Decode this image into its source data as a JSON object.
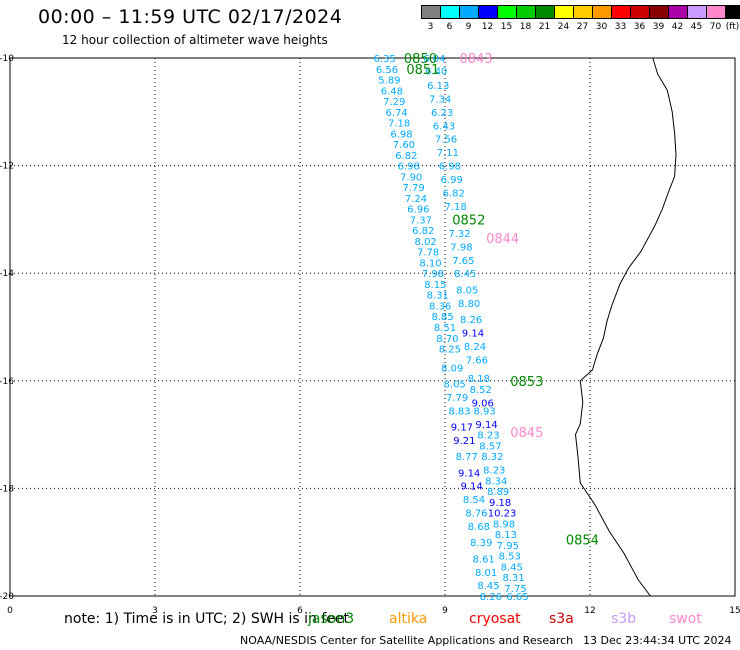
{
  "title": "00:00 – 11:59 UTC 02/17/2024",
  "subtitle": "12 hour collection of altimeter wave heights",
  "legend": {
    "unit": "(ft)",
    "bins": [
      {
        "label": "3",
        "color": "#808080"
      },
      {
        "label": "6",
        "color": "#00ffff"
      },
      {
        "label": "9",
        "color": "#00aaff"
      },
      {
        "label": "12",
        "color": "#0000ff"
      },
      {
        "label": "15",
        "color": "#00ff00"
      },
      {
        "label": "18",
        "color": "#00cc00"
      },
      {
        "label": "21",
        "color": "#008800"
      },
      {
        "label": "24",
        "color": "#ffff00"
      },
      {
        "label": "27",
        "color": "#ffcc00"
      },
      {
        "label": "30",
        "color": "#ff9900"
      },
      {
        "label": "33",
        "color": "#ff0000"
      },
      {
        "label": "36",
        "color": "#cc0000"
      },
      {
        "label": "39",
        "color": "#880000"
      },
      {
        "label": "42",
        "color": "#aa00aa"
      },
      {
        "label": "45",
        "color": "#cc99ff"
      },
      {
        "label": "70",
        "color": "#ff88cc"
      },
      {
        "label": "",
        "color": "#000000"
      }
    ]
  },
  "map": {
    "x_ticks": [
      "0",
      "3",
      "6",
      "9",
      "12",
      "15"
    ],
    "y_ticks": [
      "-10",
      "-12",
      "-14",
      "-16",
      "-18",
      "-20"
    ],
    "lon_range": [
      0,
      15
    ],
    "lat_range": [
      -20,
      -10
    ],
    "coastline": [
      [
        13.3,
        -10.0
      ],
      [
        13.4,
        -10.3
      ],
      [
        13.6,
        -10.6
      ],
      [
        13.7,
        -11.0
      ],
      [
        13.75,
        -11.4
      ],
      [
        13.78,
        -11.8
      ],
      [
        13.75,
        -12.2
      ],
      [
        13.62,
        -12.5
      ],
      [
        13.5,
        -12.8
      ],
      [
        13.35,
        -13.1
      ],
      [
        13.05,
        -13.6
      ],
      [
        12.8,
        -13.9
      ],
      [
        12.62,
        -14.2
      ],
      [
        12.45,
        -14.6
      ],
      [
        12.35,
        -14.9
      ],
      [
        12.28,
        -15.2
      ],
      [
        12.15,
        -15.5
      ],
      [
        12.05,
        -15.8
      ],
      [
        11.8,
        -16.0
      ],
      [
        11.85,
        -16.4
      ],
      [
        11.8,
        -16.8
      ],
      [
        11.7,
        -17.0
      ],
      [
        11.75,
        -17.4
      ],
      [
        11.8,
        -17.9
      ],
      [
        12.1,
        -18.3
      ],
      [
        12.4,
        -18.8
      ],
      [
        12.7,
        -19.2
      ],
      [
        13.0,
        -19.7
      ],
      [
        13.25,
        -20.0
      ]
    ],
    "pass_labels": [
      {
        "text": "0850",
        "lon": 8.15,
        "lat": -10.0,
        "color": "#008800"
      },
      {
        "text": "0851",
        "lon": 8.2,
        "lat": -10.2,
        "color": "#008800"
      },
      {
        "text": "0843",
        "lon": 9.3,
        "lat": -10.0,
        "color": "#ff88cc"
      },
      {
        "text": "0852",
        "lon": 9.15,
        "lat": -13.0,
        "color": "#008800"
      },
      {
        "text": "0844",
        "lon": 9.85,
        "lat": -13.35,
        "color": "#ff88cc"
      },
      {
        "text": "0853",
        "lon": 10.35,
        "lat": -16.0,
        "color": "#008800"
      },
      {
        "text": "0845",
        "lon": 10.35,
        "lat": -16.95,
        "color": "#ff88cc"
      },
      {
        "text": "0854",
        "lon": 11.5,
        "lat": -18.95,
        "color": "#008800"
      }
    ],
    "swh_points": [
      {
        "v": "6.35",
        "lon": 7.75,
        "lat": -10.0,
        "c": "#00aaff"
      },
      {
        "v": "6.04",
        "lon": 8.78,
        "lat": -10.0,
        "c": "#00aaff"
      },
      {
        "v": "6.56",
        "lon": 7.8,
        "lat": -10.2,
        "c": "#00aaff"
      },
      {
        "v": "6.40",
        "lon": 8.82,
        "lat": -10.23,
        "c": "#00aaff"
      },
      {
        "v": "5.89",
        "lon": 7.85,
        "lat": -10.4,
        "c": "#00aaff"
      },
      {
        "v": "6.13",
        "lon": 8.86,
        "lat": -10.5,
        "c": "#00aaff"
      },
      {
        "v": "6.48",
        "lon": 7.9,
        "lat": -10.6,
        "c": "#00aaff"
      },
      {
        "v": "7.34",
        "lon": 8.9,
        "lat": -10.75,
        "c": "#00aaff"
      },
      {
        "v": "7.29",
        "lon": 7.95,
        "lat": -10.8,
        "c": "#00aaff"
      },
      {
        "v": "6.74",
        "lon": 8.0,
        "lat": -11.0,
        "c": "#00aaff"
      },
      {
        "v": "6.23",
        "lon": 8.94,
        "lat": -11.0,
        "c": "#00aaff"
      },
      {
        "v": "7.18",
        "lon": 8.05,
        "lat": -11.2,
        "c": "#00aaff"
      },
      {
        "v": "6.43",
        "lon": 8.98,
        "lat": -11.25,
        "c": "#00aaff"
      },
      {
        "v": "6.98",
        "lon": 8.1,
        "lat": -11.4,
        "c": "#00aaff"
      },
      {
        "v": "7.56",
        "lon": 9.02,
        "lat": -11.5,
        "c": "#00aaff"
      },
      {
        "v": "7.60",
        "lon": 8.15,
        "lat": -11.6,
        "c": "#00aaff"
      },
      {
        "v": "7.11",
        "lon": 9.06,
        "lat": -11.75,
        "c": "#00aaff"
      },
      {
        "v": "6.82",
        "lon": 8.2,
        "lat": -11.8,
        "c": "#00aaff"
      },
      {
        "v": "6.98",
        "lon": 8.25,
        "lat": -12.0,
        "c": "#00aaff"
      },
      {
        "v": "6.98",
        "lon": 9.1,
        "lat": -12.0,
        "c": "#00aaff"
      },
      {
        "v": "7.90",
        "lon": 8.3,
        "lat": -12.2,
        "c": "#00aaff"
      },
      {
        "v": "6.99",
        "lon": 9.14,
        "lat": -12.25,
        "c": "#00aaff"
      },
      {
        "v": "7.79",
        "lon": 8.35,
        "lat": -12.4,
        "c": "#00aaff"
      },
      {
        "v": "6.82",
        "lon": 9.18,
        "lat": -12.5,
        "c": "#00aaff"
      },
      {
        "v": "7.24",
        "lon": 8.4,
        "lat": -12.6,
        "c": "#00aaff"
      },
      {
        "v": "7.18",
        "lon": 9.22,
        "lat": -12.75,
        "c": "#00aaff"
      },
      {
        "v": "6.96",
        "lon": 8.45,
        "lat": -12.8,
        "c": "#00aaff"
      },
      {
        "v": "7.37",
        "lon": 8.5,
        "lat": -13.0,
        "c": "#00aaff"
      },
      {
        "v": "6.82",
        "lon": 8.55,
        "lat": -13.2,
        "c": "#00aaff"
      },
      {
        "v": "7.32",
        "lon": 9.3,
        "lat": -13.25,
        "c": "#00aaff"
      },
      {
        "v": "8.02",
        "lon": 8.6,
        "lat": -13.4,
        "c": "#00aaff"
      },
      {
        "v": "7.98",
        "lon": 9.34,
        "lat": -13.5,
        "c": "#00aaff"
      },
      {
        "v": "7.78",
        "lon": 8.65,
        "lat": -13.6,
        "c": "#00aaff"
      },
      {
        "v": "7.65",
        "lon": 9.38,
        "lat": -13.75,
        "c": "#00aaff"
      },
      {
        "v": "8.10",
        "lon": 8.7,
        "lat": -13.8,
        "c": "#00aaff"
      },
      {
        "v": "7.98",
        "lon": 8.75,
        "lat": -14.0,
        "c": "#00aaff"
      },
      {
        "v": "8.45",
        "lon": 9.42,
        "lat": -14.0,
        "c": "#00aaff"
      },
      {
        "v": "8.15",
        "lon": 8.8,
        "lat": -14.2,
        "c": "#00aaff"
      },
      {
        "v": "8.05",
        "lon": 9.46,
        "lat": -14.3,
        "c": "#00aaff"
      },
      {
        "v": "8.31",
        "lon": 8.85,
        "lat": -14.4,
        "c": "#00aaff"
      },
      {
        "v": "8.36",
        "lon": 8.9,
        "lat": -14.6,
        "c": "#00aaff"
      },
      {
        "v": "8.80",
        "lon": 9.5,
        "lat": -14.55,
        "c": "#00aaff"
      },
      {
        "v": "8.85",
        "lon": 8.95,
        "lat": -14.8,
        "c": "#00aaff"
      },
      {
        "v": "8.26",
        "lon": 9.54,
        "lat": -14.85,
        "c": "#00aaff"
      },
      {
        "v": "8.51",
        "lon": 9.0,
        "lat": -15.0,
        "c": "#00aaff"
      },
      {
        "v": "9.14",
        "lon": 9.58,
        "lat": -15.1,
        "c": "#0000ff"
      },
      {
        "v": "8.70",
        "lon": 9.05,
        "lat": -15.2,
        "c": "#00aaff"
      },
      {
        "v": "8.24",
        "lon": 9.62,
        "lat": -15.35,
        "c": "#00aaff"
      },
      {
        "v": "8.25",
        "lon": 9.1,
        "lat": -15.4,
        "c": "#00aaff"
      },
      {
        "v": "7.66",
        "lon": 9.66,
        "lat": -15.6,
        "c": "#00aaff"
      },
      {
        "v": "8.09",
        "lon": 9.15,
        "lat": -15.75,
        "c": "#00aaff"
      },
      {
        "v": "8.18",
        "lon": 9.7,
        "lat": -15.95,
        "c": "#00aaff"
      },
      {
        "v": "8.05",
        "lon": 9.2,
        "lat": -16.05,
        "c": "#00aaff"
      },
      {
        "v": "8.52",
        "lon": 9.74,
        "lat": -16.15,
        "c": "#00aaff"
      },
      {
        "v": "7.79",
        "lon": 9.25,
        "lat": -16.3,
        "c": "#00aaff"
      },
      {
        "v": "9.06",
        "lon": 9.78,
        "lat": -16.4,
        "c": "#0000ff"
      },
      {
        "v": "8.83",
        "lon": 9.3,
        "lat": -16.55,
        "c": "#00aaff"
      },
      {
        "v": "8.93",
        "lon": 9.82,
        "lat": -16.55,
        "c": "#00aaff"
      },
      {
        "v": "9.17",
        "lon": 9.35,
        "lat": -16.85,
        "c": "#0000ff"
      },
      {
        "v": "9.14",
        "lon": 9.86,
        "lat": -16.8,
        "c": "#0000ff"
      },
      {
        "v": "8.23",
        "lon": 9.9,
        "lat": -17.0,
        "c": "#00aaff"
      },
      {
        "v": "9.21",
        "lon": 9.4,
        "lat": -17.1,
        "c": "#0000ff"
      },
      {
        "v": "8.57",
        "lon": 9.94,
        "lat": -17.2,
        "c": "#00aaff"
      },
      {
        "v": "8.77",
        "lon": 9.45,
        "lat": -17.4,
        "c": "#00aaff"
      },
      {
        "v": "8.32",
        "lon": 9.98,
        "lat": -17.4,
        "c": "#00aaff"
      },
      {
        "v": "9.14",
        "lon": 9.5,
        "lat": -17.7,
        "c": "#0000ff"
      },
      {
        "v": "8.23",
        "lon": 10.02,
        "lat": -17.65,
        "c": "#00aaff"
      },
      {
        "v": "8.34",
        "lon": 10.06,
        "lat": -17.85,
        "c": "#00aaff"
      },
      {
        "v": "9.14",
        "lon": 9.55,
        "lat": -17.95,
        "c": "#0000ff"
      },
      {
        "v": "8.89",
        "lon": 10.1,
        "lat": -18.05,
        "c": "#00aaff"
      },
      {
        "v": "8.54",
        "lon": 9.6,
        "lat": -18.2,
        "c": "#00aaff"
      },
      {
        "v": "9.18",
        "lon": 10.14,
        "lat": -18.25,
        "c": "#0000ff"
      },
      {
        "v": "8.76",
        "lon": 9.65,
        "lat": -18.45,
        "c": "#00aaff"
      },
      {
        "v": "10.23",
        "lon": 10.18,
        "lat": -18.45,
        "c": "#0000ff"
      },
      {
        "v": "8.98",
        "lon": 10.22,
        "lat": -18.65,
        "c": "#00aaff"
      },
      {
        "v": "8.68",
        "lon": 9.7,
        "lat": -18.7,
        "c": "#00aaff"
      },
      {
        "v": "8.13",
        "lon": 10.26,
        "lat": -18.85,
        "c": "#00aaff"
      },
      {
        "v": "8.39",
        "lon": 9.75,
        "lat": -19.0,
        "c": "#00aaff"
      },
      {
        "v": "7.95",
        "lon": 10.3,
        "lat": -19.05,
        "c": "#00aaff"
      },
      {
        "v": "8.53",
        "lon": 10.34,
        "lat": -19.25,
        "c": "#00aaff"
      },
      {
        "v": "8.61",
        "lon": 9.8,
        "lat": -19.3,
        "c": "#00aaff"
      },
      {
        "v": "8.45",
        "lon": 10.38,
        "lat": -19.45,
        "c": "#00aaff"
      },
      {
        "v": "8.01",
        "lon": 9.85,
        "lat": -19.55,
        "c": "#00aaff"
      },
      {
        "v": "8.31",
        "lon": 10.42,
        "lat": -19.65,
        "c": "#00aaff"
      },
      {
        "v": "8.45",
        "lon": 9.9,
        "lat": -19.8,
        "c": "#00aaff"
      },
      {
        "v": "7.75",
        "lon": 10.46,
        "lat": -19.85,
        "c": "#00aaff"
      },
      {
        "v": "8.26",
        "lon": 9.95,
        "lat": -20.0,
        "c": "#00aaff"
      },
      {
        "v": "6.65",
        "lon": 10.5,
        "lat": -20.0,
        "c": "#00aaff"
      }
    ]
  },
  "note": "note:  1) Time is in UTC;  2) SWH is in feet",
  "satellites": [
    {
      "name": "jason3",
      "color": "#008800"
    },
    {
      "name": "altika",
      "color": "#ff9900"
    },
    {
      "name": "cryosat",
      "color": "#ff0000"
    },
    {
      "name": "s3a",
      "color": "#cc0000"
    },
    {
      "name": "s3b",
      "color": "#cc99ff"
    },
    {
      "name": "swot",
      "color": "#ff88cc"
    }
  ],
  "credit": "NOAA/NESDIS Center for Satellite Applications and Research",
  "generated": "13 Dec 23:44:34 UTC 2024"
}
